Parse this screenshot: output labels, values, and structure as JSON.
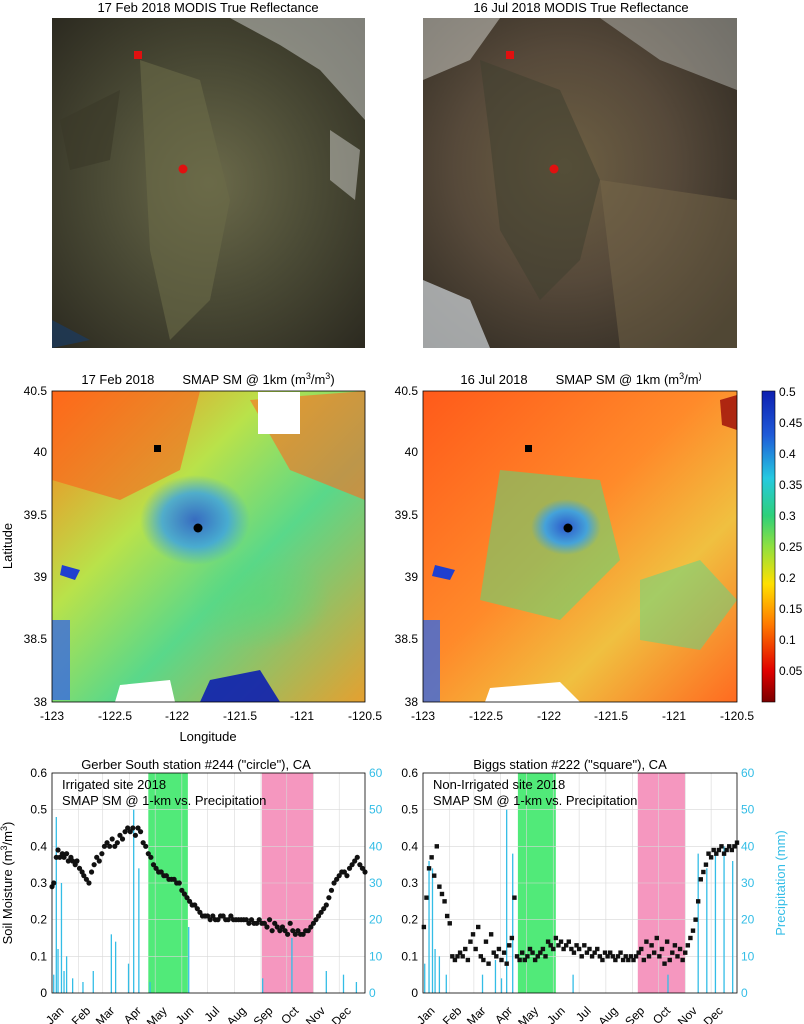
{
  "figure": {
    "modis": [
      {
        "title": "17 Feb 2018    MODIS True Reflectance"
      },
      {
        "title": "16 Jul 2018    MODIS True Reflectance"
      }
    ],
    "smap": [
      {
        "date": "17 Feb 2018",
        "product": "SMAP SM @ 1km (m",
        "unit_sup": "3",
        "unit_mid": "/m",
        "unit_end": ")"
      },
      {
        "date": "16 Jul 2018",
        "product": "SMAP SM @ 1km (m",
        "unit_sup": "3",
        "unit_mid": "/m",
        "unit_end": ")"
      }
    ],
    "map_axes": {
      "xlabel": "Longitude",
      "ylabel": "Latitude",
      "xticks": [
        "-123",
        "-122.5",
        "-122",
        "-121.5",
        "-121",
        "-120.5"
      ],
      "yticks": [
        "40.5",
        "40",
        "39.5",
        "39",
        "38.5",
        "38"
      ]
    },
    "colorbar": {
      "ticks": [
        "0.5",
        "0.45",
        "0.4",
        "0.35",
        "0.3",
        "0.25",
        "0.2",
        "0.15",
        "0.1",
        "0.05"
      ]
    },
    "ts_axes": {
      "ylabel_left_main": "Soil Moisture (m",
      "ylabel_left_sup": "3",
      "ylabel_left_mid": "/m",
      "ylabel_left_end": ")",
      "ylabel_right": "Precipitation (mm)",
      "left_ticks": [
        "0",
        "0.1",
        "0.2",
        "0.3",
        "0.4",
        "0.5",
        "0.6"
      ],
      "right_ticks": [
        "0",
        "10",
        "20",
        "30",
        "40",
        "50",
        "60"
      ],
      "months": [
        "Jan",
        "Feb",
        "Mar",
        "Apr",
        "May",
        "Jun",
        "Jul",
        "Aug",
        "Sep",
        "Oct",
        "Nov",
        "Dec"
      ]
    },
    "panels": [
      {
        "title": "Gerber South station #244 (\"circle\"), CA",
        "legend1": "Irrigated site 2018",
        "legend2": "SMAP SM @ 1-km vs. Precipitation"
      },
      {
        "title": "Biggs station #222 (\"square\"), CA",
        "legend1": "Non-Irrigated site 2018",
        "legend2": "SMAP SM @ 1-km vs. Precipitation"
      }
    ]
  },
  "chart_data": [
    {
      "type": "scatter",
      "panel": "Gerber South station #244 (\"circle\"), CA",
      "marker": "circle",
      "x_unit": "day of year 2018",
      "xlim": [
        1,
        365
      ],
      "ylim": [
        0,
        0.6
      ],
      "y2lim": [
        0,
        60
      ],
      "green_band": [
        113,
        159
      ],
      "pink_band": [
        245,
        305
      ],
      "sm_x": [
        1,
        3,
        6,
        8,
        10,
        13,
        15,
        18,
        20,
        23,
        25,
        28,
        30,
        33,
        36,
        38,
        41,
        44,
        47,
        50,
        53,
        56,
        59,
        62,
        65,
        68,
        71,
        74,
        77,
        80,
        83,
        86,
        89,
        92,
        95,
        98,
        101,
        104,
        107,
        110,
        113,
        116,
        119,
        122,
        125,
        128,
        131,
        134,
        137,
        140,
        143,
        146,
        149,
        152,
        155,
        158,
        161,
        164,
        167,
        170,
        173,
        176,
        179,
        182,
        185,
        188,
        191,
        194,
        197,
        200,
        203,
        206,
        209,
        212,
        215,
        218,
        221,
        224,
        227,
        230,
        233,
        236,
        239,
        242,
        245,
        248,
        251,
        254,
        257,
        260,
        263,
        266,
        269,
        272,
        275,
        278,
        281,
        284,
        287,
        290,
        293,
        296,
        299,
        302,
        305,
        308,
        311,
        314,
        317,
        320,
        323,
        326,
        329,
        332,
        335,
        338,
        341,
        344,
        347,
        350,
        353,
        356,
        359,
        362,
        365
      ],
      "sm_y": [
        0.29,
        0.3,
        0.37,
        0.39,
        0.37,
        0.38,
        0.37,
        0.38,
        0.36,
        0.37,
        0.36,
        0.35,
        0.36,
        0.34,
        0.33,
        0.32,
        0.31,
        0.3,
        0.33,
        0.35,
        0.37,
        0.36,
        0.38,
        0.4,
        0.41,
        0.4,
        0.42,
        0.4,
        0.41,
        0.43,
        0.42,
        0.44,
        0.45,
        0.44,
        0.45,
        0.43,
        0.45,
        0.44,
        0.41,
        0.4,
        0.38,
        0.37,
        0.35,
        0.34,
        0.33,
        0.33,
        0.32,
        0.32,
        0.31,
        0.31,
        0.31,
        0.3,
        0.3,
        0.28,
        0.27,
        0.26,
        0.25,
        0.24,
        0.24,
        0.23,
        0.22,
        0.21,
        0.21,
        0.21,
        0.2,
        0.21,
        0.2,
        0.2,
        0.21,
        0.21,
        0.2,
        0.2,
        0.21,
        0.2,
        0.2,
        0.2,
        0.2,
        0.2,
        0.2,
        0.19,
        0.2,
        0.19,
        0.19,
        0.2,
        0.19,
        0.19,
        0.18,
        0.2,
        0.17,
        0.19,
        0.18,
        0.17,
        0.18,
        0.17,
        0.16,
        0.19,
        0.17,
        0.16,
        0.17,
        0.16,
        0.16,
        0.17,
        0.17,
        0.18,
        0.19,
        0.2,
        0.21,
        0.22,
        0.23,
        0.24,
        0.26,
        0.28,
        0.3,
        0.31,
        0.32,
        0.33,
        0.33,
        0.32,
        0.34,
        0.35,
        0.36,
        0.37,
        0.35,
        0.34,
        0.33
      ],
      "precip_x": [
        3,
        6,
        8,
        12,
        15,
        18,
        25,
        37,
        49,
        70,
        75,
        90,
        96,
        102,
        115,
        160,
        246,
        280,
        320,
        340,
        355
      ],
      "precip_y": [
        5,
        48,
        12,
        30,
        6,
        10,
        4,
        3,
        6,
        16,
        14,
        8,
        50,
        34,
        3,
        18,
        4,
        15,
        6,
        5,
        3
      ]
    },
    {
      "type": "scatter",
      "panel": "Biggs station #222 (\"square\"), CA",
      "marker": "square",
      "x_unit": "day of year 2018",
      "xlim": [
        1,
        365
      ],
      "ylim": [
        0,
        0.6
      ],
      "y2lim": [
        0,
        60
      ],
      "green_band": [
        111,
        155
      ],
      "pink_band": [
        250,
        305
      ],
      "sm_x": [
        2,
        5,
        8,
        11,
        14,
        17,
        20,
        23,
        26,
        29,
        32,
        35,
        38,
        41,
        44,
        47,
        50,
        53,
        56,
        59,
        62,
        65,
        68,
        71,
        74,
        77,
        80,
        83,
        86,
        89,
        92,
        95,
        98,
        101,
        104,
        107,
        110,
        113,
        116,
        119,
        122,
        125,
        128,
        131,
        134,
        137,
        140,
        143,
        146,
        149,
        152,
        155,
        158,
        161,
        164,
        167,
        170,
        173,
        176,
        179,
        182,
        185,
        188,
        191,
        194,
        197,
        200,
        203,
        206,
        209,
        212,
        215,
        218,
        221,
        224,
        227,
        230,
        233,
        236,
        239,
        242,
        245,
        248,
        251,
        254,
        257,
        260,
        263,
        266,
        269,
        272,
        275,
        278,
        281,
        284,
        287,
        290,
        293,
        296,
        299,
        302,
        305,
        308,
        311,
        314,
        317,
        320,
        323,
        326,
        329,
        332,
        335,
        338,
        341,
        344,
        347,
        350,
        353,
        356,
        359,
        362,
        365
      ],
      "sm_y": [
        0.18,
        0.26,
        0.34,
        0.37,
        0.32,
        0.4,
        0.29,
        0.27,
        0.25,
        0.21,
        0.19,
        0.1,
        0.09,
        0.1,
        0.11,
        0.1,
        0.12,
        0.09,
        0.14,
        0.16,
        0.12,
        0.18,
        0.1,
        0.09,
        0.14,
        0.08,
        0.16,
        0.11,
        0.1,
        0.12,
        0.09,
        0.11,
        0.08,
        0.13,
        0.15,
        0.26,
        0.1,
        0.09,
        0.11,
        0.09,
        0.1,
        0.12,
        0.11,
        0.09,
        0.1,
        0.11,
        0.12,
        0.1,
        0.14,
        0.13,
        0.12,
        0.15,
        0.13,
        0.14,
        0.12,
        0.13,
        0.14,
        0.12,
        0.11,
        0.13,
        0.12,
        0.1,
        0.13,
        0.11,
        0.12,
        0.1,
        0.11,
        0.12,
        0.1,
        0.09,
        0.11,
        0.1,
        0.11,
        0.1,
        0.09,
        0.1,
        0.11,
        0.09,
        0.1,
        0.09,
        0.1,
        0.09,
        0.1,
        0.11,
        0.12,
        0.09,
        0.14,
        0.1,
        0.13,
        0.11,
        0.15,
        0.1,
        0.12,
        0.08,
        0.14,
        0.09,
        0.11,
        0.13,
        0.1,
        0.12,
        0.09,
        0.11,
        0.13,
        0.15,
        0.17,
        0.2,
        0.25,
        0.31,
        0.33,
        0.35,
        0.38,
        0.37,
        0.39,
        0.38,
        0.39,
        0.4,
        0.38,
        0.39,
        0.4,
        0.39,
        0.4,
        0.41
      ],
      "precip_x": [
        3,
        8,
        12,
        15,
        20,
        28,
        70,
        85,
        92,
        98,
        105,
        175,
        285,
        320,
        330,
        340,
        350,
        360
      ],
      "precip_y": [
        8,
        36,
        34,
        12,
        10,
        5,
        5,
        9,
        4,
        50,
        38,
        5,
        5,
        38,
        34,
        38,
        40,
        36
      ]
    }
  ]
}
